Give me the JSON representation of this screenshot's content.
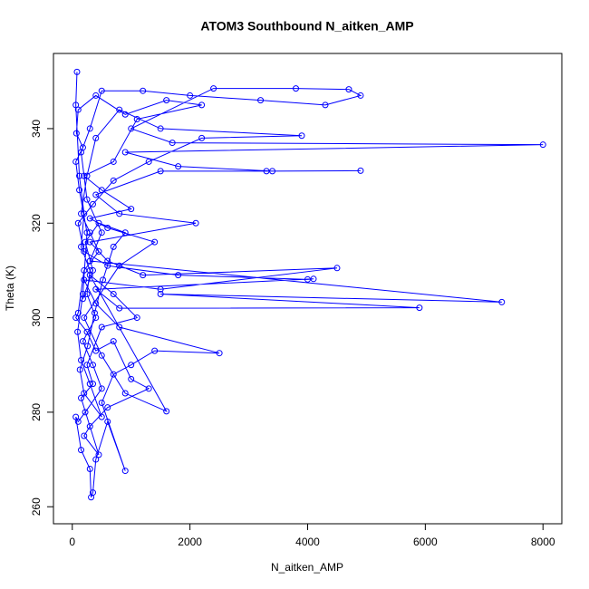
{
  "chart_data": {
    "type": "scatter-line",
    "title": "ATOM3 Southbound N_aitken_AMP",
    "x_label": "N_aitken_AMP",
    "y_label": "Theta (K)",
    "color": "#0000ff",
    "xlim": [
      -320,
      8320
    ],
    "ylim": [
      256.4,
      355.9
    ],
    "xticks": [
      0,
      2000,
      4000,
      6000,
      8000
    ],
    "yticks": [
      260,
      280,
      300,
      320,
      340
    ],
    "x": [
      80,
      60,
      120,
      200,
      150,
      300,
      250,
      400,
      180,
      350,
      500,
      220,
      100,
      60,
      150,
      300,
      320,
      350,
      400,
      600,
      900,
      500,
      700,
      1000,
      1400,
      2500,
      800,
      400,
      200,
      1500,
      4500,
      1200,
      600,
      300,
      2100,
      800,
      400,
      1500,
      3300,
      4900,
      3400,
      1800,
      900,
      8000,
      1700,
      1000,
      2400,
      3800,
      4700,
      4900,
      4300,
      3200,
      2000,
      1200,
      500,
      300,
      150,
      250,
      500,
      300,
      7300,
      1500,
      5900,
      800,
      400,
      4100,
      4000,
      1800,
      600,
      200,
      100,
      350,
      700,
      1300,
      2200,
      3900,
      1500,
      800,
      400,
      250,
      150,
      300,
      450,
      200,
      100,
      60,
      250,
      400,
      700,
      1000,
      1300,
      600,
      300,
      200,
      450,
      150,
      350,
      250,
      500,
      1100,
      700,
      300,
      1600,
      900,
      500,
      200,
      800,
      1400,
      600,
      300,
      1000,
      500,
      200,
      700,
      1100,
      2200,
      1600,
      900,
      400,
      100,
      70,
      180,
      60,
      120,
      250,
      180,
      90,
      150,
      300,
      500,
      200,
      130,
      260,
      380,
      520,
      700,
      900,
      450,
      220,
      350,
      180
    ],
    "values": [
      352,
      345,
      330,
      322,
      315,
      310,
      305,
      300,
      295,
      290,
      285,
      280,
      278,
      279,
      272,
      268,
      262,
      263,
      270,
      278,
      267.6,
      282,
      288,
      290,
      293,
      292.5,
      298,
      303,
      308,
      306,
      310.5,
      309,
      312,
      316,
      320,
      322,
      326,
      331,
      331,
      331.1,
      331,
      332,
      335,
      336.6,
      337,
      340,
      348.5,
      348.5,
      348.3,
      347,
      345,
      346,
      347,
      348,
      348,
      340,
      335,
      325,
      318,
      312,
      303.3,
      305,
      302.1,
      302,
      306,
      308.2,
      308.1,
      309,
      311,
      314,
      320,
      324,
      329,
      333,
      338,
      338.5,
      340,
      344,
      338,
      330,
      322,
      318,
      314,
      310,
      301,
      300,
      297,
      293,
      295,
      287,
      285,
      281,
      277,
      275,
      271,
      283,
      286,
      290,
      298,
      300,
      305,
      309,
      280.2,
      284,
      292,
      300,
      311,
      316,
      319,
      321,
      323,
      327,
      330,
      333,
      342,
      345,
      346,
      343,
      347,
      344,
      339,
      336,
      333,
      327,
      318,
      305,
      297,
      291,
      286,
      279,
      284,
      289,
      294,
      301,
      308,
      315,
      318,
      320,
      316,
      310,
      304
    ]
  }
}
